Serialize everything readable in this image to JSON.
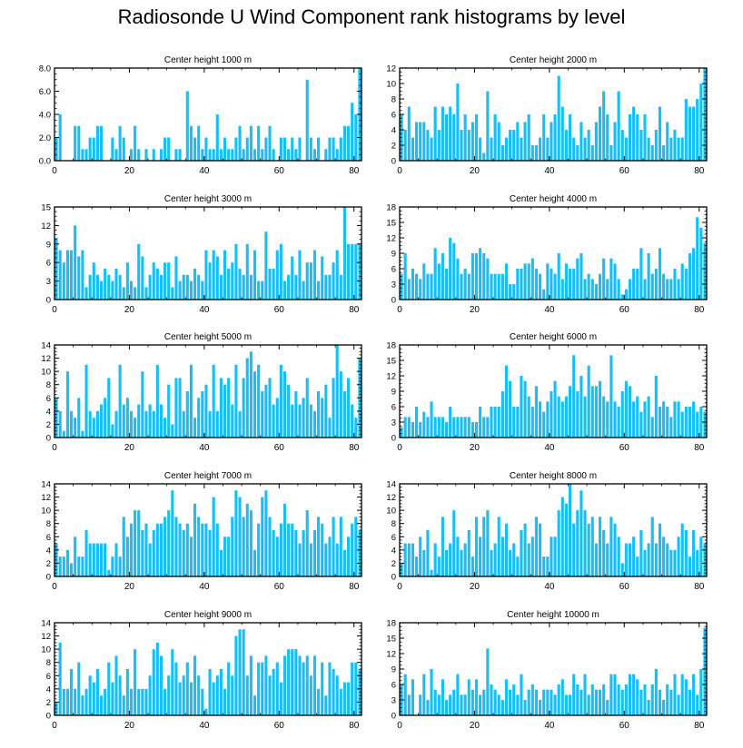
{
  "title": "Radiosonde U Wind Component rank histograms by level",
  "colors": {
    "bar": "#16bff7",
    "axis": "#000000",
    "background": "#ffffff"
  },
  "chart_data": [
    {
      "type": "bar",
      "title": "Center height 1000 m",
      "xlim": [
        0,
        82
      ],
      "ylim": [
        0,
        8
      ],
      "yticks": [
        0,
        2,
        4,
        6,
        8
      ],
      "ytick_labels": [
        "0.0",
        "2.0",
        "4.0",
        "6.0",
        "8.0"
      ],
      "xticks": [
        0,
        20,
        40,
        60,
        80
      ],
      "xtick_labels": [
        "0",
        "20",
        "40",
        "60",
        "80"
      ],
      "values": [
        2,
        4,
        0,
        0,
        0,
        3,
        3,
        1,
        1,
        2,
        2,
        3,
        3,
        0,
        0,
        2,
        1,
        3,
        2,
        0,
        1,
        3,
        1,
        0,
        1,
        0,
        1,
        0,
        1,
        2,
        2,
        0,
        1,
        1,
        0,
        6,
        3,
        2,
        3,
        1,
        2,
        1,
        1,
        4,
        1,
        2,
        1,
        1,
        2,
        3,
        1,
        2,
        3,
        1,
        3,
        1,
        2,
        3,
        1,
        0,
        2,
        2,
        1,
        2,
        1,
        2,
        0,
        7,
        2,
        1,
        2,
        0,
        1,
        2,
        2,
        1,
        2,
        3,
        3,
        5,
        4,
        8,
        0
      ]
    },
    {
      "type": "bar",
      "title": "Center height 2000 m",
      "xlim": [
        0,
        82
      ],
      "ylim": [
        0,
        12
      ],
      "yticks": [
        0,
        2,
        4,
        6,
        8,
        10,
        12
      ],
      "ytick_labels": [
        "0",
        "2",
        "4",
        "6",
        "8",
        "10",
        "12"
      ],
      "xticks": [
        0,
        20,
        40,
        60,
        80
      ],
      "xtick_labels": [
        "0",
        "20",
        "40",
        "60",
        "80"
      ],
      "values": [
        6,
        4,
        7,
        3,
        5,
        5,
        5,
        4,
        3,
        7,
        4,
        7,
        6,
        7,
        6,
        10,
        4,
        6,
        4,
        5,
        6,
        3,
        1,
        9,
        3,
        6,
        5,
        2,
        3,
        4,
        4,
        5,
        3,
        5,
        6,
        2,
        2,
        3,
        6,
        3,
        5,
        6,
        11,
        7,
        4,
        6,
        3,
        2,
        5,
        3,
        4,
        2,
        5,
        7,
        9,
        6,
        2,
        5,
        9,
        4,
        3,
        6,
        7,
        6,
        4,
        6,
        3,
        2,
        4,
        7,
        2,
        5,
        3,
        4,
        3,
        3,
        8,
        7,
        7,
        8,
        10,
        12
      ]
    },
    {
      "type": "bar",
      "title": "Center height 3000 m",
      "xlim": [
        0,
        82
      ],
      "ylim": [
        0,
        15
      ],
      "yticks": [
        0,
        3,
        6,
        9,
        12,
        15
      ],
      "ytick_labels": [
        "0",
        "3",
        "6",
        "9",
        "12",
        "15"
      ],
      "xticks": [
        0,
        20,
        40,
        60,
        80
      ],
      "xtick_labels": [
        "0",
        "20",
        "40",
        "60",
        "80"
      ],
      "values": [
        10,
        8,
        6,
        8,
        8,
        12,
        7,
        8,
        2,
        4,
        6,
        4,
        3,
        5,
        4,
        3,
        5,
        4,
        2,
        6,
        3,
        2,
        9,
        7,
        2,
        4,
        6,
        5,
        4,
        6,
        6,
        2,
        7,
        3,
        4,
        4,
        3,
        5,
        4,
        3,
        8,
        6,
        8,
        7,
        4,
        8,
        5,
        6,
        9,
        5,
        4,
        9,
        4,
        8,
        3,
        3,
        11,
        5,
        5,
        8,
        9,
        3,
        4,
        7,
        4,
        8,
        3,
        6,
        6,
        8,
        3,
        7,
        4,
        4,
        6,
        8,
        4,
        15,
        9,
        9,
        9,
        9
      ]
    },
    {
      "type": "bar",
      "title": "Center height 4000 m",
      "xlim": [
        0,
        82
      ],
      "ylim": [
        0,
        18
      ],
      "yticks": [
        0,
        3,
        6,
        9,
        12,
        15,
        18
      ],
      "ytick_labels": [
        "0",
        "3",
        "6",
        "9",
        "12",
        "15",
        "18"
      ],
      "xticks": [
        0,
        20,
        40,
        60,
        80
      ],
      "xtick_labels": [
        "0",
        "20",
        "40",
        "60",
        "80"
      ],
      "values": [
        5,
        9,
        4,
        6,
        5,
        4,
        7,
        5,
        5,
        10,
        7,
        9,
        6,
        12,
        11,
        8,
        5,
        6,
        5,
        9,
        9,
        10,
        9,
        8,
        5,
        5,
        5,
        5,
        7,
        3,
        3,
        6,
        6,
        7,
        7,
        8,
        6,
        5,
        2,
        7,
        6,
        5,
        9,
        4,
        7,
        6,
        6,
        8,
        9,
        4,
        5,
        4,
        3,
        5,
        8,
        4,
        8,
        7,
        4,
        1,
        2,
        4,
        6,
        6,
        10,
        4,
        9,
        5,
        6,
        10,
        5,
        4,
        4,
        6,
        4,
        7,
        6,
        9,
        10,
        16,
        14,
        11
      ]
    },
    {
      "type": "bar",
      "title": "Center height 5000 m",
      "xlim": [
        0,
        82
      ],
      "ylim": [
        0,
        14
      ],
      "yticks": [
        0,
        2,
        4,
        6,
        8,
        10,
        12,
        14
      ],
      "ytick_labels": [
        "0",
        "2",
        "4",
        "6",
        "8",
        "10",
        "12",
        "14"
      ],
      "xticks": [
        0,
        20,
        40,
        60,
        80
      ],
      "xtick_labels": [
        "0",
        "20",
        "40",
        "60",
        "80"
      ],
      "values": [
        6,
        4,
        1,
        10,
        4,
        3,
        6,
        1,
        11,
        4,
        3,
        4,
        5,
        6,
        9,
        2,
        4,
        11,
        5,
        6,
        4,
        3,
        5,
        10,
        4,
        5,
        4,
        11,
        5,
        3,
        8,
        2,
        9,
        9,
        4,
        7,
        11,
        3,
        6,
        7,
        8,
        4,
        11,
        4,
        9,
        8,
        9,
        5,
        11,
        4,
        9,
        12,
        13,
        10,
        11,
        7,
        8,
        9,
        5,
        6,
        11,
        10,
        8,
        5,
        7,
        5,
        6,
        9,
        5,
        4,
        7,
        6,
        8,
        3,
        9,
        14,
        10,
        7,
        9,
        5,
        3,
        12
      ]
    },
    {
      "type": "bar",
      "title": "Center height 6000 m",
      "xlim": [
        0,
        82
      ],
      "ylim": [
        0,
        18
      ],
      "yticks": [
        0,
        3,
        6,
        9,
        12,
        15,
        18
      ],
      "ytick_labels": [
        "0",
        "3",
        "6",
        "9",
        "12",
        "15",
        "18"
      ],
      "xticks": [
        0,
        20,
        40,
        60,
        80
      ],
      "xtick_labels": [
        "0",
        "20",
        "40",
        "60",
        "80"
      ],
      "values": [
        2,
        4,
        4,
        3,
        6,
        3,
        5,
        4,
        7,
        4,
        4,
        4,
        3,
        6,
        4,
        4,
        4,
        4,
        4,
        3,
        3,
        6,
        4,
        4,
        6,
        6,
        6,
        9,
        14,
        11,
        6,
        6,
        12,
        11,
        8,
        6,
        10,
        7,
        5,
        7,
        9,
        11,
        8,
        7,
        8,
        10,
        16,
        9,
        12,
        8,
        14,
        10,
        10,
        11,
        8,
        7,
        16,
        7,
        6,
        9,
        11,
        10,
        7,
        8,
        5,
        7,
        8,
        4,
        12,
        6,
        7,
        6,
        4,
        7,
        7,
        5,
        6,
        6,
        7,
        5,
        6,
        5
      ]
    },
    {
      "type": "bar",
      "title": "Center height 7000 m",
      "xlim": [
        0,
        82
      ],
      "ylim": [
        0,
        14
      ],
      "yticks": [
        0,
        2,
        4,
        6,
        8,
        10,
        12,
        14
      ],
      "ytick_labels": [
        "0",
        "2",
        "4",
        "6",
        "8",
        "10",
        "12",
        "14"
      ],
      "xticks": [
        0,
        20,
        40,
        60,
        80
      ],
      "xtick_labels": [
        "0",
        "20",
        "40",
        "60",
        "80"
      ],
      "values": [
        5,
        3,
        3,
        4,
        2,
        6,
        3,
        3,
        7,
        5,
        5,
        5,
        5,
        5,
        1,
        3,
        5,
        3,
        9,
        6,
        8,
        10,
        10,
        7,
        8,
        5,
        7,
        8,
        8,
        9,
        10,
        13,
        9,
        8,
        7,
        8,
        6,
        11,
        9,
        8,
        8,
        7,
        12,
        8,
        4,
        6,
        6,
        9,
        13,
        12,
        9,
        11,
        10,
        4,
        8,
        12,
        13,
        9,
        7,
        6,
        8,
        11,
        8,
        8,
        7,
        5,
        7,
        10,
        5,
        7,
        9,
        8,
        5,
        6,
        9,
        5,
        9,
        4,
        6,
        8,
        9,
        7
      ]
    },
    {
      "type": "bar",
      "title": "Center height 8000 m",
      "xlim": [
        0,
        82
      ],
      "ylim": [
        0,
        14
      ],
      "yticks": [
        0,
        2,
        4,
        6,
        8,
        10,
        12,
        14
      ],
      "ytick_labels": [
        "0",
        "2",
        "4",
        "6",
        "8",
        "10",
        "12",
        "14"
      ],
      "xticks": [
        0,
        20,
        40,
        60,
        80
      ],
      "xtick_labels": [
        "0",
        "20",
        "40",
        "60",
        "80"
      ],
      "values": [
        2,
        5,
        5,
        5,
        3,
        6,
        4,
        7,
        1,
        5,
        3,
        9,
        4,
        5,
        10,
        6,
        4,
        5,
        7,
        3,
        9,
        6,
        9,
        10,
        4,
        5,
        9,
        6,
        8,
        4,
        5,
        3,
        7,
        8,
        5,
        6,
        9,
        8,
        3,
        3,
        6,
        6,
        10,
        12,
        11,
        14,
        8,
        10,
        13,
        10,
        8,
        9,
        5,
        9,
        7,
        5,
        9,
        8,
        6,
        2,
        5,
        5,
        6,
        3,
        7,
        4,
        5,
        9,
        5,
        8,
        6,
        5,
        4,
        4,
        6,
        8,
        7,
        3,
        7,
        4,
        6,
        5
      ]
    },
    {
      "type": "bar",
      "title": "Center height 9000 m",
      "xlim": [
        0,
        82
      ],
      "ylim": [
        0,
        14
      ],
      "yticks": [
        0,
        2,
        4,
        6,
        8,
        10,
        12,
        14
      ],
      "ytick_labels": [
        "0",
        "2",
        "4",
        "6",
        "8",
        "10",
        "12",
        "14"
      ],
      "xticks": [
        0,
        20,
        40,
        60,
        80
      ],
      "xtick_labels": [
        "0",
        "20",
        "40",
        "60",
        "80"
      ],
      "values": [
        2,
        11,
        4,
        4,
        7,
        4,
        8,
        3,
        4,
        6,
        5,
        7,
        3,
        4,
        8,
        5,
        9,
        6,
        3,
        7,
        4,
        10,
        4,
        4,
        4,
        6,
        10,
        11,
        9,
        4,
        6,
        10,
        8,
        5,
        6,
        8,
        5,
        9,
        6,
        4,
        1,
        7,
        5,
        6,
        7,
        4,
        8,
        6,
        12,
        13,
        13,
        6,
        9,
        3,
        8,
        8,
        9,
        6,
        7,
        8,
        5,
        9,
        10,
        10,
        10,
        9,
        8,
        9,
        6,
        9,
        4,
        8,
        3,
        8,
        7,
        6,
        4,
        5,
        5,
        8,
        8,
        7
      ]
    },
    {
      "type": "bar",
      "title": "Center height 10000 m",
      "xlim": [
        0,
        82
      ],
      "ylim": [
        0,
        18
      ],
      "yticks": [
        0,
        3,
        6,
        9,
        12,
        15,
        18
      ],
      "ytick_labels": [
        "0",
        "3",
        "6",
        "9",
        "12",
        "15",
        "18"
      ],
      "xticks": [
        0,
        20,
        40,
        60,
        80
      ],
      "xtick_labels": [
        "0",
        "20",
        "40",
        "60",
        "80"
      ],
      "values": [
        6,
        8,
        4,
        7,
        0,
        4,
        8,
        3,
        9,
        5,
        4,
        7,
        3,
        4,
        5,
        8,
        4,
        4,
        7,
        5,
        7,
        4,
        5,
        13,
        6,
        5,
        4,
        3,
        7,
        5,
        6,
        4,
        8,
        3,
        5,
        6,
        5,
        3,
        5,
        5,
        5,
        4,
        6,
        7,
        4,
        4,
        8,
        6,
        5,
        8,
        4,
        6,
        5,
        5,
        6,
        3,
        8,
        8,
        6,
        5,
        6,
        8,
        8,
        7,
        5,
        6,
        3,
        6,
        9,
        5,
        3,
        6,
        5,
        8,
        4,
        8,
        7,
        5,
        8,
        4,
        9,
        17
      ]
    }
  ]
}
